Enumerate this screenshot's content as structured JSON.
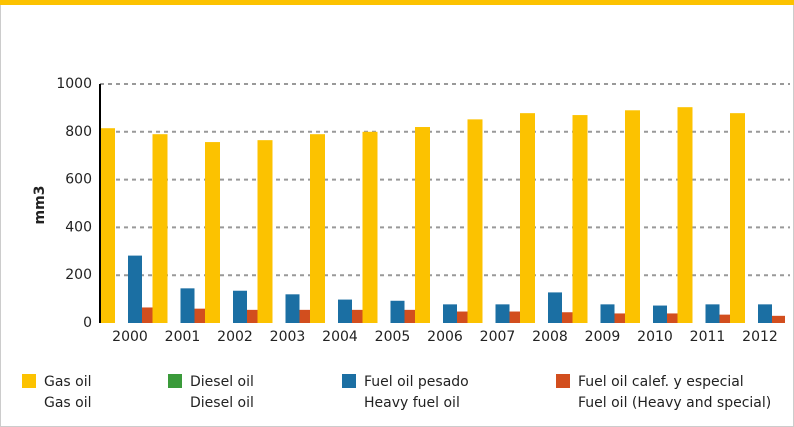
{
  "chart_data": {
    "type": "bar",
    "y_label": "mm3",
    "categories": [
      "2000",
      "2001",
      "2002",
      "2003",
      "2004",
      "2005",
      "2006",
      "2007",
      "2008",
      "2009",
      "2010",
      "2011",
      "2012"
    ],
    "series": [
      {
        "name": "Gas oil",
        "name_en": "Gas oil",
        "color": "#fcc200",
        "values": [
          815,
          790,
          757,
          765,
          790,
          800,
          820,
          852,
          878,
          870,
          890,
          903,
          878
        ]
      },
      {
        "name": "Diesel oil",
        "name_en": "Diesel oil",
        "color": "#3a9a3a",
        "values": [
          0,
          0,
          0,
          0,
          0,
          0,
          0,
          0,
          0,
          0,
          0,
          0,
          0
        ]
      },
      {
        "name": "Fuel oil pesado",
        "name_en": "Heavy fuel oil",
        "color": "#1b6fa3",
        "values": [
          282,
          145,
          135,
          120,
          98,
          93,
          78,
          78,
          128,
          78,
          73,
          78,
          78
        ]
      },
      {
        "name": "Fuel oil calef. y especial",
        "name_en": "Fuel oil (Heavy and special)",
        "color": "#d24e1e",
        "values": [
          65,
          60,
          55,
          55,
          55,
          55,
          48,
          48,
          45,
          40,
          40,
          35,
          30
        ]
      }
    ],
    "ylim": [
      0,
      1000
    ],
    "yticks": [
      0,
      200,
      400,
      600,
      800,
      1000
    ],
    "grid": true
  }
}
